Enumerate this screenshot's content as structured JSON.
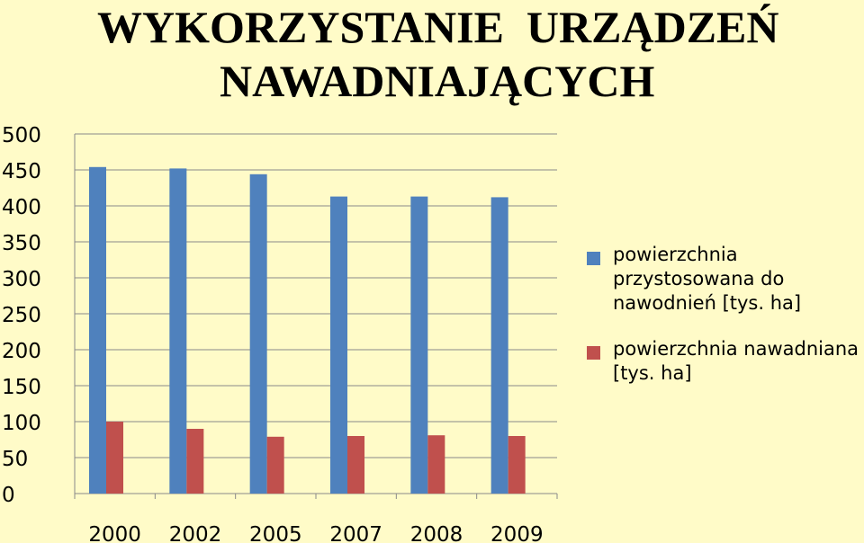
{
  "title": {
    "line1": "WYKORZYSTANIE  URZĄDZEŃ",
    "line2": "NAWADNIAJĄCYCH"
  },
  "colors": {
    "background": "#fffbc8",
    "series1": "#4f81bd",
    "series2": "#c0504d"
  },
  "chart_data": {
    "type": "bar",
    "categories": [
      "2000",
      "2002",
      "2005",
      "2007",
      "2008",
      "2009"
    ],
    "series": [
      {
        "name": "powierzchnia przystosowana do nawodnień [tys. ha]",
        "values": [
          454,
          452,
          444,
          413,
          413,
          412
        ]
      },
      {
        "name": "powierzchnia nawadniana [tys. ha]",
        "values": [
          100,
          90,
          79,
          80,
          81,
          80
        ]
      }
    ],
    "ylim": [
      0,
      500
    ],
    "yticks": [
      "0",
      "50",
      "100",
      "150",
      "200",
      "250",
      "300",
      "350",
      "400",
      "450",
      "500"
    ],
    "grid": true,
    "legend_position": "right"
  }
}
